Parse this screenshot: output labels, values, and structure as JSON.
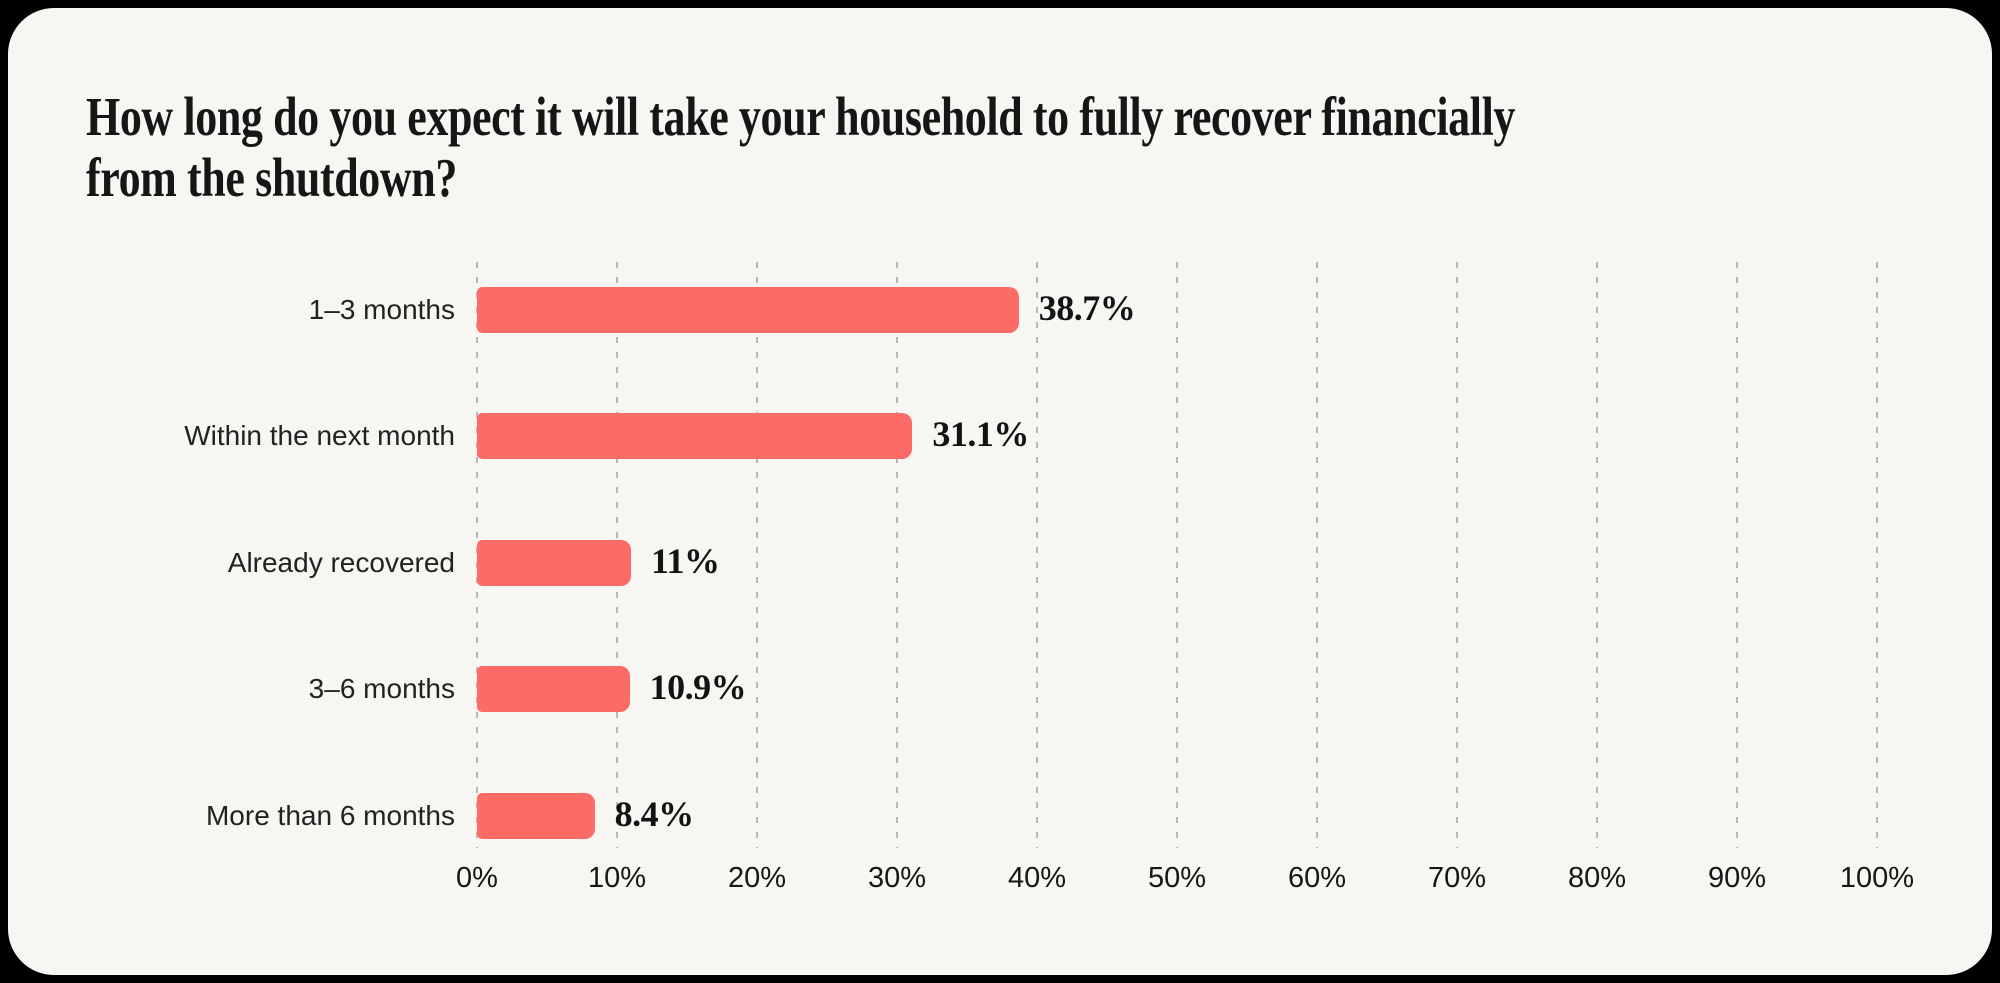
{
  "header": {
    "title_line1": "How long do you expect it will take your household to fully recover financially",
    "title_line2": "from the shutdown?"
  },
  "colors": {
    "page_background": "#000000",
    "card_background": "#F7F6F2",
    "bar": "#FC6B66",
    "gridline": "#B9B7B4",
    "text": "#161616"
  },
  "chart_data": {
    "type": "bar",
    "orientation": "horizontal",
    "title": "How long do you expect it will take your household to fully recover financially from the shutdown?",
    "categories": [
      "1–3 months",
      "Within the next month",
      "Already recovered",
      "3–6 months",
      "More than 6 months"
    ],
    "values": [
      38.7,
      31.1,
      11,
      10.9,
      8.4
    ],
    "value_labels": [
      "38.7%",
      "31.1%",
      "11%",
      "10.9%",
      "8.4%"
    ],
    "xlabel": "",
    "ylabel": "",
    "xlim": [
      0,
      100
    ],
    "x_tick_values": [
      0,
      10,
      20,
      30,
      40,
      50,
      60,
      70,
      80,
      90,
      100
    ],
    "x_tick_labels": [
      "0%",
      "10%",
      "20%",
      "30%",
      "40%",
      "50%",
      "60%",
      "70%",
      "80%",
      "90%",
      "100%"
    ],
    "grid": "vertical-dashed",
    "legend_position": "none"
  }
}
